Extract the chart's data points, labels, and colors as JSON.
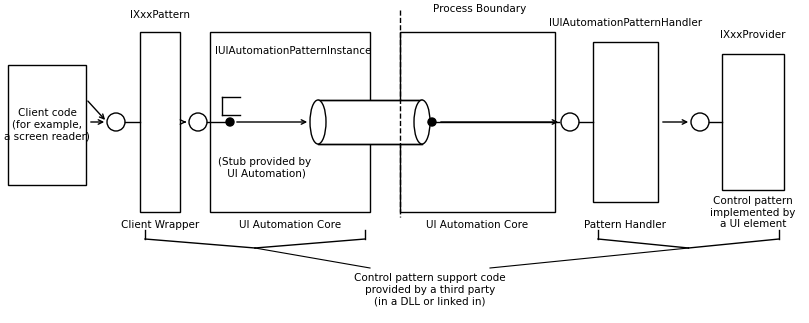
{
  "bg_color": "#ffffff",
  "line_color": "#000000",
  "font_size": 7.5,
  "process_boundary_text": "Process Boundary",
  "ixxxpattern_text": "IXxxPattern",
  "client_wrapper_text": "Client Wrapper",
  "iui_pattern_instance_text": "IUIAutomationPatternInstance",
  "ua_core_left_text": "UI Automation Core",
  "ua_core_right_text": "UI Automation Core",
  "iui_pattern_handler_text": "IUIAutomationPatternHandler",
  "pattern_handler_text": "Pattern Handler",
  "ixxxprovider_text": "IXxxProvider",
  "provider_text": "Control pattern\nimplemented by\na UI element",
  "client_code_text": "Client code\n(for example,\na screen reader)",
  "stub_text": "(Stub provided by\n UI Automation)",
  "bottom_text": "Control pattern support code\nprovided by a third party\n(in a DLL or linked in)"
}
